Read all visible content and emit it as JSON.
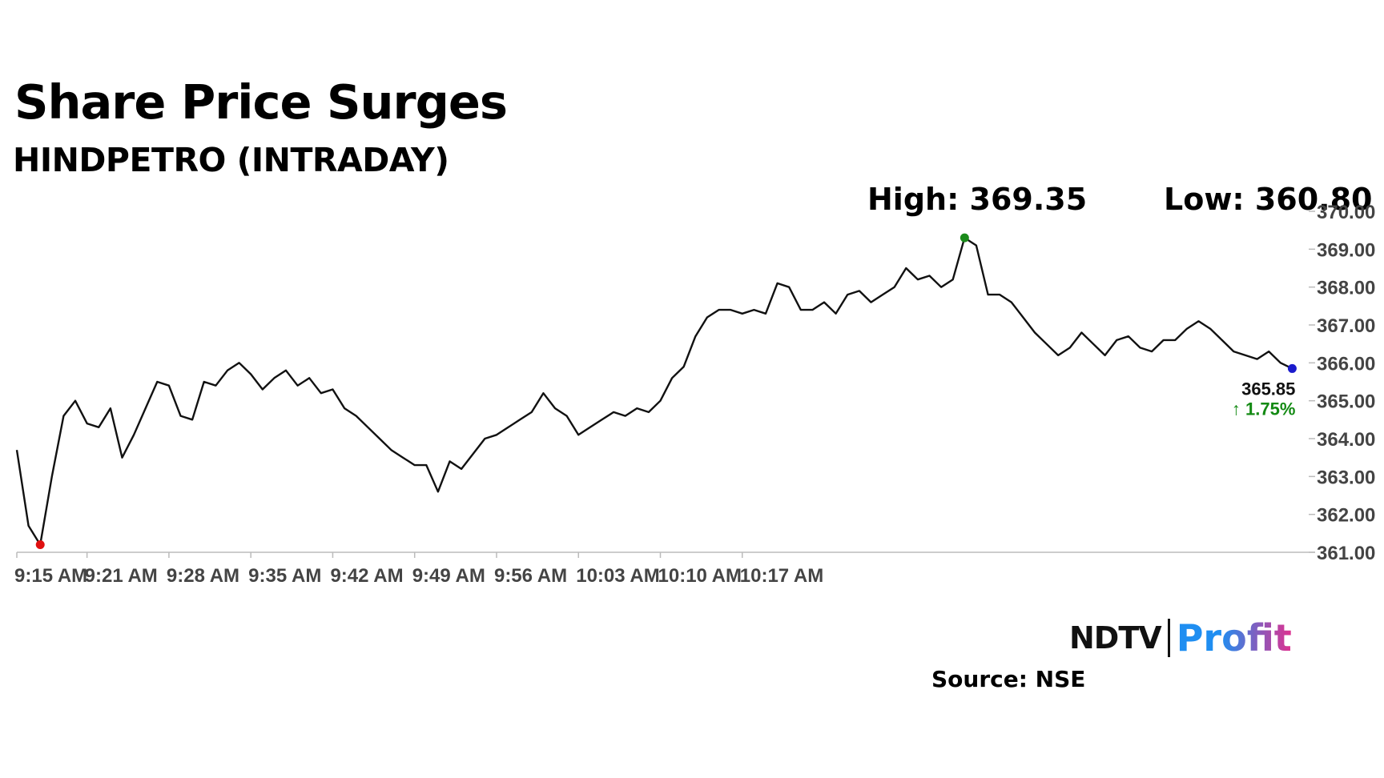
{
  "header": {
    "title": "Share Price Surges",
    "subtitle": "HINDPETRO (INTRADAY)",
    "high_label": "High: 369.35",
    "low_label": "Low: 360.80"
  },
  "branding": {
    "ndtv": "NDTV",
    "profit": "Profit",
    "source": "Source: NSE"
  },
  "colors": {
    "line": "#111111",
    "axis": "#bbbbbb",
    "high_marker": "#1a8a1a",
    "low_marker": "#e01010",
    "last_marker": "#1a1acc",
    "change_up": "#138a13",
    "tick_text": "#444444"
  },
  "chart_data": {
    "type": "line",
    "title": "Share Price Surges",
    "subtitle": "HINDPETRO (INTRADAY)",
    "xlabel": "",
    "ylabel": "",
    "x_tick_labels": [
      "9:15 AM",
      "9:21 AM",
      "9:28 AM",
      "9:35 AM",
      "9:42 AM",
      "9:49 AM",
      "9:56 AM",
      "10:03 AM",
      "10:10 AM",
      "10:17 AM"
    ],
    "x_tick_index": [
      0,
      6,
      13,
      20,
      27,
      34,
      41,
      48,
      55,
      62
    ],
    "y_tick_labels": [
      "361.00",
      "362.00",
      "363.00",
      "364.00",
      "365.00",
      "366.00",
      "367.00",
      "368.00",
      "369.00",
      "370.00"
    ],
    "ylim": [
      361.0,
      370.0
    ],
    "y_axis_side": "right",
    "grid": false,
    "legend": "none",
    "points": [
      [
        "9:15",
        363.7
      ],
      [
        "9:15",
        361.7
      ],
      [
        "9:16",
        361.2
      ],
      [
        "9:16",
        363.0
      ],
      [
        "9:17",
        364.6
      ],
      [
        "9:17",
        365.0
      ],
      [
        "9:18",
        364.4
      ],
      [
        "9:18",
        364.3
      ],
      [
        "9:19",
        364.8
      ],
      [
        "9:19",
        363.5
      ],
      [
        "9:20",
        364.1
      ],
      [
        "9:20",
        364.8
      ],
      [
        "9:21",
        365.5
      ],
      [
        "9:21",
        365.4
      ],
      [
        "9:22",
        364.6
      ],
      [
        "9:22",
        364.5
      ],
      [
        "9:23",
        365.5
      ],
      [
        "9:23",
        365.4
      ],
      [
        "9:24",
        365.8
      ],
      [
        "9:24",
        366.0
      ],
      [
        "9:25",
        365.7
      ],
      [
        "9:25",
        365.3
      ],
      [
        "9:26",
        365.6
      ],
      [
        "9:26",
        365.8
      ],
      [
        "9:27",
        365.4
      ],
      [
        "9:27",
        365.6
      ],
      [
        "9:28",
        365.2
      ],
      [
        "9:28",
        365.3
      ],
      [
        "9:29",
        364.8
      ],
      [
        "9:29",
        364.6
      ],
      [
        "9:30",
        364.3
      ],
      [
        "9:30",
        364.0
      ],
      [
        "9:31",
        363.7
      ],
      [
        "9:31",
        363.5
      ],
      [
        "9:32",
        363.3
      ],
      [
        "9:32",
        363.3
      ],
      [
        "9:33",
        362.6
      ],
      [
        "9:33",
        363.4
      ],
      [
        "9:34",
        363.2
      ],
      [
        "9:34",
        363.6
      ],
      [
        "9:35",
        364.0
      ],
      [
        "9:35",
        364.1
      ],
      [
        "9:36",
        364.3
      ],
      [
        "9:36",
        364.5
      ],
      [
        "9:37",
        364.7
      ],
      [
        "9:37",
        365.2
      ],
      [
        "9:38",
        364.8
      ],
      [
        "9:38",
        364.6
      ],
      [
        "9:39",
        364.1
      ],
      [
        "9:39",
        364.3
      ],
      [
        "9:40",
        364.5
      ],
      [
        "9:40",
        364.7
      ],
      [
        "9:41",
        364.6
      ],
      [
        "9:41",
        364.8
      ],
      [
        "9:42",
        364.7
      ],
      [
        "9:42",
        365.0
      ],
      [
        "9:43",
        365.6
      ],
      [
        "9:43",
        365.9
      ],
      [
        "9:44",
        366.7
      ],
      [
        "9:44",
        367.2
      ],
      [
        "9:45",
        367.4
      ],
      [
        "9:45",
        367.4
      ],
      [
        "9:46",
        367.3
      ],
      [
        "9:46",
        367.4
      ],
      [
        "9:47",
        367.3
      ],
      [
        "9:47",
        368.1
      ],
      [
        "9:48",
        368.0
      ],
      [
        "9:48",
        367.4
      ],
      [
        "9:49",
        367.4
      ],
      [
        "9:49",
        367.6
      ],
      [
        "9:50",
        367.3
      ],
      [
        "9:50",
        367.8
      ],
      [
        "9:51",
        367.9
      ],
      [
        "9:51",
        367.6
      ],
      [
        "9:52",
        367.8
      ],
      [
        "9:52",
        368.0
      ],
      [
        "9:53",
        368.5
      ],
      [
        "9:53",
        368.2
      ],
      [
        "9:54",
        368.3
      ],
      [
        "9:54",
        368.0
      ],
      [
        "9:55",
        368.2
      ],
      [
        "9:55",
        369.3
      ],
      [
        "9:56",
        369.1
      ],
      [
        "9:56",
        367.8
      ],
      [
        "9:57",
        367.8
      ],
      [
        "9:57",
        367.6
      ],
      [
        "9:58",
        367.2
      ],
      [
        "9:58",
        366.8
      ],
      [
        "9:59",
        366.5
      ],
      [
        "9:59",
        366.2
      ],
      [
        "10:00",
        366.4
      ],
      [
        "10:00",
        366.8
      ],
      [
        "10:01",
        366.5
      ],
      [
        "10:01",
        366.2
      ],
      [
        "10:02",
        366.6
      ],
      [
        "10:02",
        366.7
      ],
      [
        "10:03",
        366.4
      ],
      [
        "10:03",
        366.3
      ],
      [
        "10:04",
        366.6
      ],
      [
        "10:04",
        366.6
      ],
      [
        "10:05",
        366.9
      ],
      [
        "10:05",
        367.1
      ],
      [
        "10:06",
        366.9
      ],
      [
        "10:06",
        366.6
      ],
      [
        "10:07",
        366.3
      ],
      [
        "10:07",
        366.2
      ],
      [
        "10:08",
        366.1
      ],
      [
        "10:08",
        366.3
      ],
      [
        "10:09",
        366.0
      ],
      [
        "10:09",
        365.85
      ]
    ],
    "high": {
      "value": 369.35,
      "label": "High: 369.35"
    },
    "low": {
      "value": 360.8,
      "label": "Low: 360.80"
    },
    "last": {
      "value": "365.85",
      "change": "↑ 1.75%"
    }
  }
}
